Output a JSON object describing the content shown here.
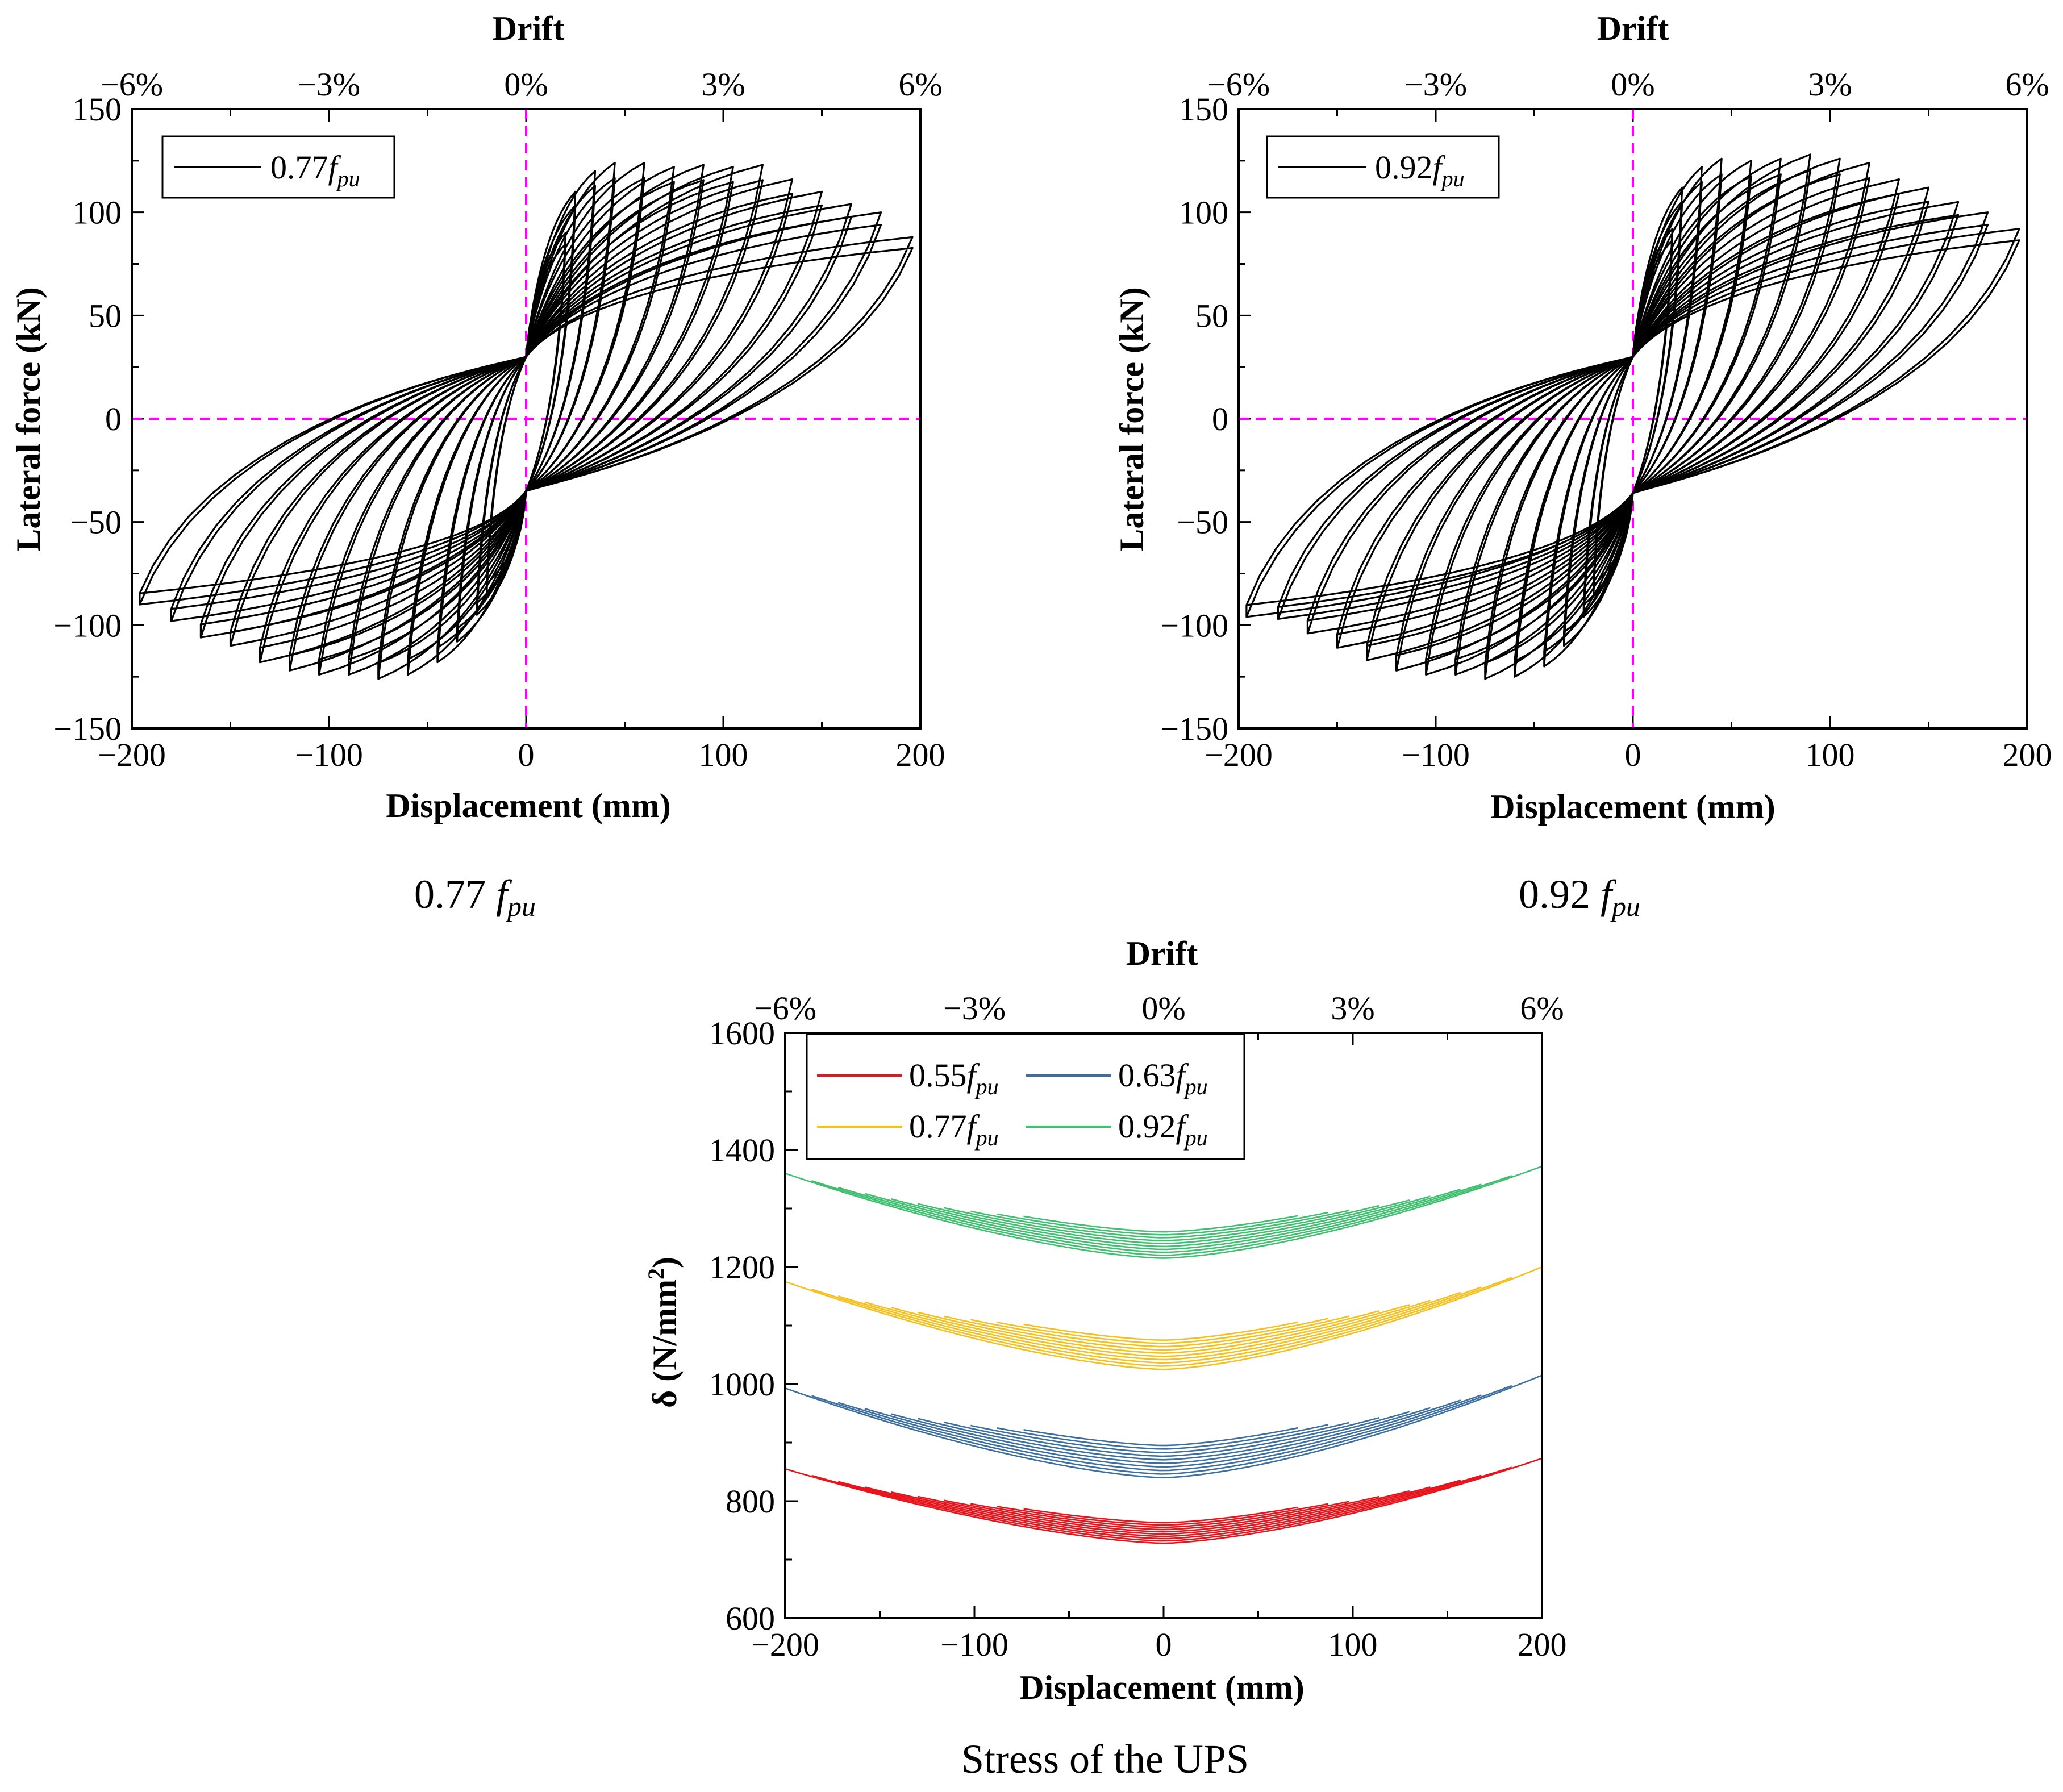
{
  "captions": {
    "a_prefix": "0.77 ",
    "a_f": "f",
    "a_sub": "pu",
    "b_prefix": "0.92 ",
    "b_f": "f",
    "b_sub": "pu",
    "c": "Stress of the UPS"
  },
  "colors": {
    "hysteresis": "#000000",
    "reference_lines": "#ff00ff",
    "s055": "#e8141c",
    "s063": "#3c6ea0",
    "s077": "#f5c01e",
    "s092": "#3fbf6f"
  },
  "chart_data": [
    {
      "id": "hysteresis_077",
      "type": "line",
      "title": "",
      "xlabel": "Displacement (mm)",
      "ylabel": "Lateral force (kN)",
      "top_axis_label": "Drift",
      "xlim": [
        -200,
        200
      ],
      "ylim": [
        -150,
        150
      ],
      "xticks": [
        -200,
        -100,
        0,
        100,
        200
      ],
      "xtick_labels": [
        "−200",
        "−100",
        "0",
        "100",
        "200"
      ],
      "yticks": [
        -150,
        -100,
        -50,
        0,
        50,
        100,
        150
      ],
      "ytick_labels": [
        "−150",
        "−100",
        "−50",
        "0",
        "50",
        "100",
        "150"
      ],
      "top_ticks": [
        -6,
        -3,
        0,
        3,
        6
      ],
      "top_tick_labels": [
        "−6%",
        "−3%",
        "0%",
        "3%",
        "6%"
      ],
      "legend": {
        "position": "top-left",
        "label_prefix": "0.77",
        "label_f": "f",
        "label_sub": "pu"
      },
      "reference_lines": {
        "x": 0,
        "y": 0
      },
      "series": [
        {
          "name": "0.77fpu",
          "loops": [
            {
              "amp": 20,
              "pos_peak": 90,
              "neg_peak": -85
            },
            {
              "amp": 25,
              "pos_peak": 110,
              "neg_peak": -95
            },
            {
              "amp": 35,
              "pos_peak": 120,
              "neg_peak": -108
            },
            {
              "amp": 45,
              "pos_peak": 124,
              "neg_peak": -118
            },
            {
              "amp": 60,
              "pos_peak": 124,
              "neg_peak": -124
            },
            {
              "amp": 75,
              "pos_peak": 122,
              "neg_peak": -126
            },
            {
              "amp": 90,
              "pos_peak": 123,
              "neg_peak": -124
            },
            {
              "amp": 105,
              "pos_peak": 122,
              "neg_peak": -124
            },
            {
              "amp": 120,
              "pos_peak": 123,
              "neg_peak": -122
            },
            {
              "amp": 135,
              "pos_peak": 116,
              "neg_peak": -118
            },
            {
              "amp": 150,
              "pos_peak": 110,
              "neg_peak": -110
            },
            {
              "amp": 165,
              "pos_peak": 104,
              "neg_peak": -106
            },
            {
              "amp": 180,
              "pos_peak": 100,
              "neg_peak": -98
            },
            {
              "amp": 196,
              "pos_peak": 88,
              "neg_peak": -90
            }
          ],
          "residual_force": [
            30,
            -35
          ]
        }
      ]
    },
    {
      "id": "hysteresis_092",
      "type": "line",
      "title": "",
      "xlabel": "Displacement (mm)",
      "ylabel": "Lateral force (kN)",
      "top_axis_label": "Drift",
      "xlim": [
        -200,
        200
      ],
      "ylim": [
        -150,
        150
      ],
      "xticks": [
        -200,
        -100,
        0,
        100,
        200
      ],
      "xtick_labels": [
        "−200",
        "−100",
        "0",
        "100",
        "200"
      ],
      "yticks": [
        -150,
        -100,
        -50,
        0,
        50,
        100,
        150
      ],
      "ytick_labels": [
        "−150",
        "−100",
        "−50",
        "0",
        "50",
        "100",
        "150"
      ],
      "top_ticks": [
        -6,
        -3,
        0,
        3,
        6
      ],
      "top_tick_labels": [
        "−6%",
        "−3%",
        "0%",
        "3%",
        "6%"
      ],
      "legend": {
        "position": "top-left",
        "label_prefix": "0.92",
        "label_f": "f",
        "label_sub": "pu"
      },
      "reference_lines": {
        "x": 0,
        "y": 0
      },
      "series": [
        {
          "name": "0.92fpu",
          "loops": [
            {
              "amp": 20,
              "pos_peak": 92,
              "neg_peak": -86
            },
            {
              "amp": 25,
              "pos_peak": 112,
              "neg_peak": -96
            },
            {
              "amp": 35,
              "pos_peak": 122,
              "neg_peak": -110
            },
            {
              "amp": 45,
              "pos_peak": 126,
              "neg_peak": -120
            },
            {
              "amp": 60,
              "pos_peak": 125,
              "neg_peak": -125
            },
            {
              "amp": 75,
              "pos_peak": 126,
              "neg_peak": -126
            },
            {
              "amp": 90,
              "pos_peak": 128,
              "neg_peak": -124
            },
            {
              "amp": 105,
              "pos_peak": 126,
              "neg_peak": -124
            },
            {
              "amp": 120,
              "pos_peak": 124,
              "neg_peak": -122
            },
            {
              "amp": 135,
              "pos_peak": 116,
              "neg_peak": -117
            },
            {
              "amp": 150,
              "pos_peak": 112,
              "neg_peak": -111
            },
            {
              "amp": 165,
              "pos_peak": 105,
              "neg_peak": -104
            },
            {
              "amp": 180,
              "pos_peak": 100,
              "neg_peak": -97
            },
            {
              "amp": 196,
              "pos_peak": 92,
              "neg_peak": -96
            }
          ],
          "residual_force": [
            30,
            -36
          ]
        }
      ]
    },
    {
      "id": "ups_stress",
      "type": "line",
      "title": "",
      "xlabel": "Displacement (mm)",
      "ylabel_main": "δ",
      "ylabel_unit": " (N/mm",
      "ylabel_sup": "2",
      "ylabel_close": ")",
      "top_axis_label": "Drift",
      "xlim": [
        -200,
        200
      ],
      "ylim": [
        600,
        1600
      ],
      "xticks": [
        -200,
        -100,
        0,
        100,
        200
      ],
      "xtick_labels": [
        "−200",
        "−100",
        "0",
        "100",
        "200"
      ],
      "yticks": [
        600,
        800,
        1000,
        1200,
        1400,
        1600
      ],
      "ytick_labels": [
        "600",
        "800",
        "1000",
        "1200",
        "1400",
        "1600"
      ],
      "top_ticks": [
        -6,
        -3,
        0,
        3,
        6
      ],
      "top_tick_labels": [
        "−6%",
        "−3%",
        "0%",
        "3%",
        "6%"
      ],
      "legend": {
        "position": "top-left",
        "columns": 2
      },
      "series": [
        {
          "name": "0.55fpu",
          "label_prefix": "0.55",
          "label_f": "f",
          "label_sub": "pu",
          "color": "#e8141c",
          "min": 728,
          "at_neg200": 855,
          "at_pos200": 873,
          "band": 35
        },
        {
          "name": "0.63fpu",
          "label_prefix": "0.63",
          "label_f": "f",
          "label_sub": "pu",
          "color": "#3c6ea0",
          "min": 840,
          "at_neg200": 993,
          "at_pos200": 1015,
          "band": 55
        },
        {
          "name": "0.77fpu",
          "label_prefix": "0.77",
          "label_f": "f",
          "label_sub": "pu",
          "color": "#f5c01e",
          "min": 1025,
          "at_neg200": 1175,
          "at_pos200": 1200,
          "band": 50
        },
        {
          "name": "0.92fpu",
          "label_prefix": "0.92",
          "label_f": "f",
          "label_sub": "pu",
          "color": "#3fbf6f",
          "min": 1215,
          "at_neg200": 1360,
          "at_pos200": 1372,
          "band": 45
        }
      ]
    }
  ]
}
